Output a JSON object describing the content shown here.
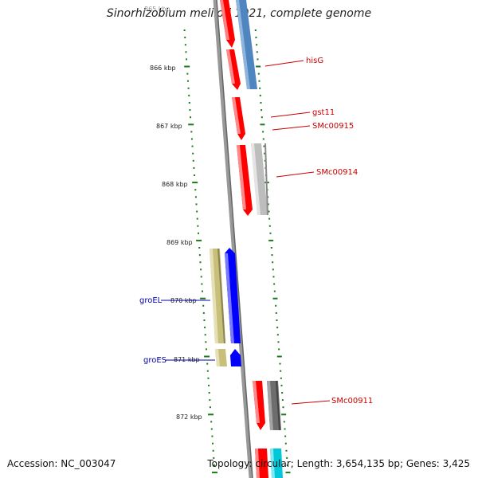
{
  "title": "Sinorhizobium meliloti 1021, complete genome",
  "footer": {
    "accession": "Accession: NC_003047",
    "summary": "Topology: circular; Length: 3,654,135 bp; Genes: 3,425"
  },
  "ruler": {
    "partial_label": "865 kbp",
    "labels": [
      "866 kbp",
      "867 kbp",
      "868 kbp",
      "869 kbp",
      "870 kbp",
      "871 kbp",
      "872 kbp"
    ]
  },
  "genes": [
    {
      "label": "hisG",
      "color": "#cc0000",
      "feature_colors": [
        "#ff0000",
        "#4f86c0"
      ]
    },
    {
      "label": "gst11",
      "color": "#cc0000",
      "feature_colors": [
        "#ff0000"
      ]
    },
    {
      "label": "SMc00915",
      "color": "#cc0000",
      "feature_colors": [
        "#ff0000"
      ]
    },
    {
      "label": "SMc00914",
      "color": "#cc0000",
      "feature_colors": [
        "#ff0000",
        "#bdbdbd"
      ]
    },
    {
      "label": "groEL",
      "color": "#0000aa",
      "feature_colors": [
        "#c8bf7a",
        "#0000ff"
      ]
    },
    {
      "label": "groES",
      "color": "#0000aa",
      "feature_colors": [
        "#c8bf7a",
        "#0000ff"
      ]
    },
    {
      "label": "SMc00911",
      "color": "#cc0000",
      "feature_colors": [
        "#ff0000",
        "#6d6d6d"
      ]
    }
  ],
  "colors": {
    "tick": "#1a7a1a",
    "backbone": "#8a8a8a"
  }
}
